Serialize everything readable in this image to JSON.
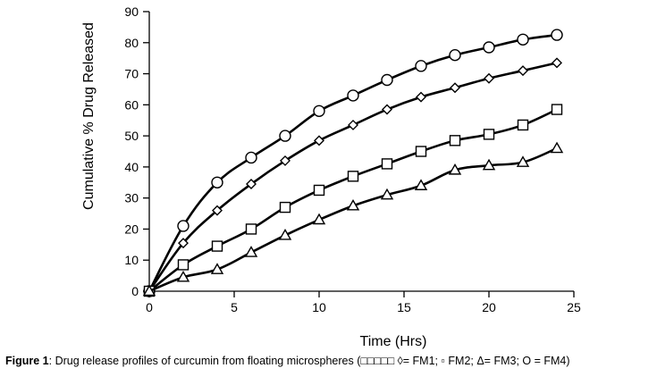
{
  "chart_data": {
    "type": "line",
    "title": "",
    "xlabel": "Time (Hrs)",
    "ylabel": "Cumulative % Drug Released",
    "xlim": [
      0,
      25
    ],
    "ylim": [
      0,
      90
    ],
    "xticks": [
      "0",
      "5",
      "10",
      "15",
      "20",
      "25"
    ],
    "yticks": [
      "0",
      "10",
      "20",
      "30",
      "40",
      "50",
      "60",
      "70",
      "80",
      "90"
    ],
    "grid": false,
    "legend": "none",
    "line_color": "#000000",
    "series": [
      {
        "marker": "circle",
        "x": [
          0,
          2,
          4,
          6,
          8,
          10,
          12,
          14,
          16,
          18,
          20,
          22,
          24
        ],
        "values": [
          0,
          21,
          35,
          43,
          50,
          58,
          63,
          68,
          72.5,
          76,
          78.5,
          81,
          82.5
        ]
      },
      {
        "marker": "diamond",
        "x": [
          0,
          2,
          4,
          6,
          8,
          10,
          12,
          14,
          16,
          18,
          20,
          22,
          24
        ],
        "values": [
          0,
          15.5,
          26,
          34.5,
          42,
          48.5,
          53.5,
          58.5,
          62.5,
          65.5,
          68.5,
          71,
          73.5
        ]
      },
      {
        "marker": "square",
        "x": [
          0,
          2,
          4,
          6,
          8,
          10,
          12,
          14,
          16,
          18,
          20,
          22,
          24
        ],
        "values": [
          0,
          8.5,
          14.5,
          20,
          27,
          32.5,
          37,
          41,
          45,
          48.5,
          50.5,
          53.5,
          58.5
        ]
      },
      {
        "marker": "triangle",
        "x": [
          0,
          2,
          4,
          6,
          8,
          10,
          12,
          14,
          16,
          18,
          20,
          22,
          24
        ],
        "values": [
          0,
          4.5,
          7,
          12.5,
          18,
          23,
          27.5,
          31,
          34,
          39,
          40.5,
          41.5,
          46
        ]
      }
    ]
  },
  "caption": {
    "label": "Figure 1",
    "text": ": Drug release profiles of curcumin from floating microspheres (□□□□□ ◊= FM1; ▫ FM2; Δ= FM3; O = FM4)"
  }
}
